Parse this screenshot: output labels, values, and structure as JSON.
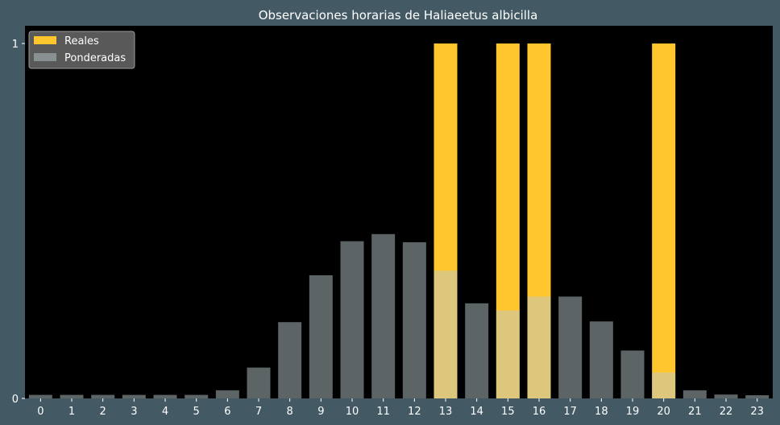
{
  "chart_data": {
    "type": "bar",
    "title": "Observaciones horarias de Haliaeetus albicilla",
    "xlabel": "",
    "ylabel": "",
    "categories": [
      "0",
      "1",
      "2",
      "3",
      "4",
      "5",
      "6",
      "7",
      "8",
      "9",
      "10",
      "11",
      "12",
      "13",
      "14",
      "15",
      "16",
      "17",
      "18",
      "19",
      "20",
      "21",
      "22",
      "23"
    ],
    "series": [
      {
        "name": "Reales",
        "color": "#ffc62e",
        "values": [
          0,
          0,
          0,
          0,
          0,
          0,
          0,
          0,
          0,
          0,
          0,
          0,
          0,
          1,
          0,
          1,
          1,
          0,
          0,
          0,
          1,
          0,
          0,
          0
        ]
      },
      {
        "name": "Ponderadas",
        "color": "#b9c8cc",
        "opacity": 0.5,
        "values": [
          0.01,
          0.01,
          0.01,
          0.01,
          0.01,
          0.01,
          0.023,
          0.087,
          0.215,
          0.347,
          0.443,
          0.463,
          0.44,
          0.36,
          0.268,
          0.248,
          0.287,
          0.287,
          0.217,
          0.135,
          0.073,
          0.023,
          0.011,
          0.009
        ]
      }
    ],
    "ylim": [
      0,
      1.05
    ],
    "yticks": [
      "0",
      "1"
    ],
    "grid": false,
    "legend_position": "top-left",
    "plot_background": "#000000"
  }
}
